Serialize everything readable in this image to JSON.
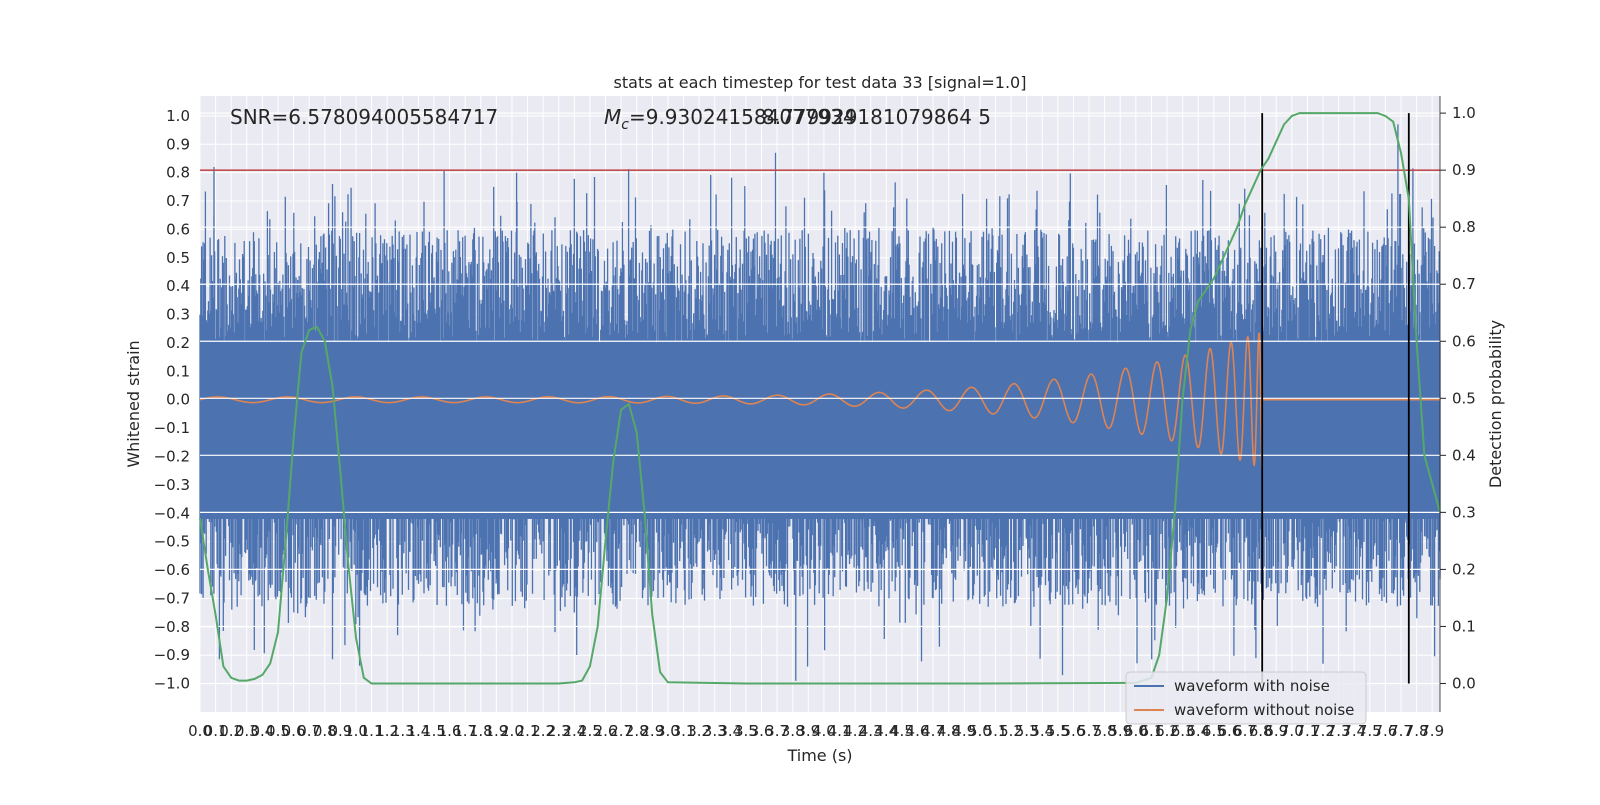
{
  "chart_data": {
    "type": "line",
    "title": "stats at each timestep for test data 33 [signal=1.0]",
    "xlabel": "Time (s)",
    "ylabel": "Whitened strain",
    "ylabel_right": "Detection probability",
    "xlim": [
      0.0,
      7.95
    ],
    "ylim": [
      -1.1,
      1.07
    ],
    "ylim_right": [
      -0.05,
      1.03
    ],
    "x_ticks": [
      0.0,
      0.1,
      0.2,
      0.3,
      0.4,
      0.5,
      0.6,
      0.7,
      0.8,
      0.9,
      1.0,
      1.1,
      1.2,
      1.3,
      1.4,
      1.5,
      1.6,
      1.7,
      1.8,
      1.9,
      2.0,
      2.1,
      2.2,
      2.3,
      2.4,
      2.5,
      2.6,
      2.7,
      2.8,
      2.9,
      3.0,
      3.1,
      3.2,
      3.3,
      3.4,
      3.5,
      3.6,
      3.7,
      3.8,
      3.9,
      4.0,
      4.1,
      4.2,
      4.3,
      4.4,
      4.5,
      4.6,
      4.7,
      4.8,
      4.9,
      5.0,
      5.1,
      5.2,
      5.3,
      5.4,
      5.5,
      5.6,
      5.7,
      5.8,
      5.9,
      6.0,
      6.1,
      6.2,
      6.3,
      6.4,
      6.5,
      6.6,
      6.7,
      6.8,
      6.9,
      7.0,
      7.1,
      7.2,
      7.3,
      7.4,
      7.5,
      7.6,
      7.7,
      7.8,
      7.9
    ],
    "x_tick_labels": [
      "0.0",
      "0.1",
      "0.2",
      "0.3",
      "0.4",
      "0.5",
      "0.6",
      "0.7",
      "0.8",
      "0.9",
      "1.0",
      "1.1",
      "1.2",
      "1.3",
      "1.4",
      "1.5",
      "1.6",
      "1.7",
      "1.8",
      "1.9",
      "2.0",
      "2.1",
      "2.2",
      "2.3",
      "2.4",
      "2.5",
      "2.6",
      "2.7",
      "2.8",
      "2.9",
      "3.0",
      "3.1",
      "3.2",
      "3.3",
      "3.4",
      "3.5",
      "3.6",
      "3.7",
      "3.8",
      "3.9",
      "4.0",
      "4.1",
      "4.2",
      "4.3",
      "4.4",
      "4.5",
      "4.6",
      "4.7",
      "4.8",
      "4.9",
      "5.0",
      "5.1",
      "5.2",
      "5.3",
      "5.4",
      "5.5",
      "5.6",
      "5.7",
      "5.8",
      "5.9",
      "6.0",
      "6.1",
      "6.2",
      "6.3",
      "6.4",
      "6.5",
      "6.6",
      "6.7",
      "6.8",
      "6.9",
      "7.0",
      "7.1",
      "7.2",
      "7.3",
      "7.4",
      "7.5",
      "7.6",
      "7.7",
      "7.8",
      "7.9"
    ],
    "y_ticks": [
      -1.0,
      -0.9,
      -0.8,
      -0.7,
      -0.6,
      -0.5,
      -0.4,
      -0.3,
      -0.2,
      -0.1,
      0.0,
      0.1,
      0.2,
      0.3,
      0.4,
      0.5,
      0.6,
      0.7,
      0.8,
      0.9,
      1.0
    ],
    "y_tick_labels": [
      "−1.0",
      "−0.9",
      "−0.8",
      "−0.7",
      "−0.6",
      "−0.5",
      "−0.4",
      "−0.3",
      "−0.2",
      "−0.1",
      "0.0",
      "0.1",
      "0.2",
      "0.3",
      "0.4",
      "0.5",
      "0.6",
      "0.7",
      "0.8",
      "0.9",
      "1.0"
    ],
    "y_ticks_right": [
      0.0,
      0.1,
      0.2,
      0.3,
      0.4,
      0.5,
      0.6,
      0.7,
      0.8,
      0.9,
      1.0
    ],
    "y_tick_labels_right": [
      "0.0",
      "0.1",
      "0.2",
      "0.3",
      "0.4",
      "0.5",
      "0.6",
      "0.7",
      "0.8",
      "0.9",
      "1.0"
    ],
    "annotations": {
      "snr": "SNR=6.578094005584717",
      "mc_symbol": "M",
      "mc_subscript": "c",
      "mc_value": "=9.930241584077934",
      "overlap_value": "8.779929181079864 5"
    },
    "threshold": 0.9,
    "vertical_lines_x": [
      6.81,
      7.75
    ],
    "legend": {
      "position": "lower-right",
      "entries": [
        "waveform with noise",
        "waveform without noise"
      ]
    },
    "noise_amplitude_typical": 0.55,
    "series": [
      {
        "name": "waveform with noise",
        "color": "#4c72b0",
        "axis": "left",
        "style": "dense-noise",
        "peaks_max": 0.97,
        "peaks_min": -0.99
      },
      {
        "name": "waveform without noise",
        "color": "#dd8452",
        "axis": "left",
        "style": "chirp",
        "chirp_end": 6.81,
        "amplitude_start": 0.01,
        "amplitude_end": 0.24
      },
      {
        "color": "#55a868",
        "axis": "right",
        "style": "line",
        "x": [
          0.0,
          0.05,
          0.1,
          0.15,
          0.2,
          0.25,
          0.3,
          0.35,
          0.4,
          0.45,
          0.5,
          0.55,
          0.6,
          0.65,
          0.7,
          0.75,
          0.8,
          0.85,
          0.9,
          0.95,
          1.0,
          1.05,
          1.1,
          1.15,
          1.2,
          1.5,
          2.0,
          2.3,
          2.4,
          2.45,
          2.5,
          2.55,
          2.6,
          2.65,
          2.7,
          2.75,
          2.8,
          2.85,
          2.9,
          2.95,
          3.0,
          3.5,
          4.0,
          5.0,
          6.0,
          6.1,
          6.15,
          6.2,
          6.25,
          6.3,
          6.35,
          6.4,
          6.45,
          6.5,
          6.55,
          6.6,
          6.65,
          6.7,
          6.75,
          6.8,
          6.85,
          6.9,
          6.95,
          7.0,
          7.05,
          7.1,
          7.2,
          7.4,
          7.55,
          7.6,
          7.65,
          7.7,
          7.75,
          7.8,
          7.85,
          7.95
        ],
        "y": [
          0.29,
          0.2,
          0.12,
          0.03,
          0.01,
          0.005,
          0.005,
          0.008,
          0.015,
          0.035,
          0.09,
          0.25,
          0.43,
          0.58,
          0.62,
          0.625,
          0.6,
          0.52,
          0.37,
          0.21,
          0.08,
          0.01,
          0.0,
          0.0,
          0.0,
          0.0,
          0.0,
          0.0,
          0.002,
          0.005,
          0.03,
          0.1,
          0.25,
          0.39,
          0.48,
          0.49,
          0.44,
          0.3,
          0.12,
          0.02,
          0.002,
          0.0,
          0.0,
          0.0,
          0.001,
          0.01,
          0.05,
          0.15,
          0.3,
          0.5,
          0.62,
          0.67,
          0.69,
          0.71,
          0.74,
          0.77,
          0.8,
          0.84,
          0.87,
          0.9,
          0.92,
          0.95,
          0.98,
          0.995,
          1.0,
          1.0,
          1.0,
          1.0,
          1.0,
          0.995,
          0.985,
          0.93,
          0.85,
          0.6,
          0.4,
          0.3
        ]
      }
    ]
  }
}
